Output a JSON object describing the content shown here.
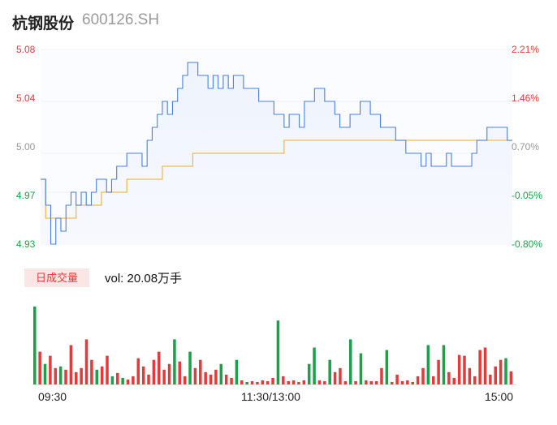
{
  "header": {
    "name": "杭钢股份",
    "code": "600126.SH"
  },
  "chart_data": {
    "type": "line",
    "title": "",
    "price_axis": [
      "5.08",
      "5.04",
      "5.00",
      "4.97",
      "4.93"
    ],
    "pct_axis": [
      "2.21%",
      "1.46%",
      "0.70%",
      "-0.05%",
      "-0.80%"
    ],
    "ylim": [
      4.93,
      5.08
    ],
    "prev_close": 4.97,
    "x_ticks": [
      "09:30",
      "11:30/13:00",
      "15:00"
    ],
    "colors": {
      "up": "#e23b3b",
      "down": "#1aa14a",
      "neutral": "#999999",
      "price": "#4a7fe0",
      "avg": "#f2bc4b"
    },
    "series": [
      {
        "name": "price",
        "values": [
          4.98,
          4.96,
          4.93,
          4.95,
          4.94,
          4.96,
          4.97,
          4.96,
          4.97,
          4.96,
          4.97,
          4.98,
          4.98,
          4.97,
          4.98,
          4.99,
          4.99,
          5.0,
          5.0,
          5.0,
          4.99,
          5.01,
          5.02,
          5.03,
          5.04,
          5.03,
          5.04,
          5.05,
          5.06,
          5.07,
          5.07,
          5.06,
          5.06,
          5.05,
          5.06,
          5.05,
          5.06,
          5.05,
          5.06,
          5.06,
          5.05,
          5.05,
          5.05,
          5.04,
          5.04,
          5.04,
          5.03,
          5.03,
          5.02,
          5.03,
          5.03,
          5.02,
          5.04,
          5.04,
          5.05,
          5.05,
          5.04,
          5.04,
          5.03,
          5.02,
          5.02,
          5.03,
          5.03,
          5.04,
          5.04,
          5.03,
          5.03,
          5.02,
          5.02,
          5.02,
          5.01,
          5.01,
          5.0,
          5.0,
          5.0,
          4.99,
          5.0,
          4.99,
          4.99,
          4.99,
          5.0,
          4.99,
          4.99,
          4.99,
          4.99,
          5.0,
          5.01,
          5.01,
          5.02,
          5.02,
          5.02,
          5.02,
          5.01
        ]
      },
      {
        "name": "avg",
        "values": [
          4.98,
          4.95,
          4.95,
          4.95,
          4.95,
          4.95,
          4.95,
          4.96,
          4.96,
          4.96,
          4.96,
          4.96,
          4.97,
          4.97,
          4.97,
          4.97,
          4.97,
          4.98,
          4.98,
          4.98,
          4.98,
          4.98,
          4.98,
          4.98,
          4.99,
          4.99,
          4.99,
          4.99,
          4.99,
          4.99,
          5.0,
          5.0,
          5.0,
          5.0,
          5.0,
          5.0,
          5.0,
          5.0,
          5.0,
          5.0,
          5.0,
          5.0,
          5.0,
          5.0,
          5.0,
          5.0,
          5.0,
          5.0,
          5.01,
          5.01,
          5.01,
          5.01,
          5.01,
          5.01,
          5.01,
          5.01,
          5.01,
          5.01,
          5.01,
          5.01,
          5.01,
          5.01,
          5.01,
          5.01,
          5.01,
          5.01,
          5.01,
          5.01,
          5.01,
          5.01,
          5.01,
          5.01,
          5.01,
          5.01,
          5.01,
          5.01,
          5.01,
          5.01,
          5.01,
          5.01,
          5.01,
          5.01,
          5.01,
          5.01,
          5.01,
          5.01,
          5.01,
          5.01,
          5.01,
          5.01,
          5.01,
          5.01,
          5.01
        ]
      }
    ],
    "volume": {
      "tab_label": "日成交量",
      "summary": "vol: 20.08万手",
      "bars": [
        {
          "v": 95,
          "c": "down"
        },
        {
          "v": 40,
          "c": "up"
        },
        {
          "v": 25,
          "c": "down"
        },
        {
          "v": 35,
          "c": "up"
        },
        {
          "v": 20,
          "c": "up"
        },
        {
          "v": 22,
          "c": "down"
        },
        {
          "v": 18,
          "c": "up"
        },
        {
          "v": 48,
          "c": "up"
        },
        {
          "v": 15,
          "c": "up"
        },
        {
          "v": 20,
          "c": "up"
        },
        {
          "v": 55,
          "c": "up"
        },
        {
          "v": 30,
          "c": "up"
        },
        {
          "v": 18,
          "c": "down"
        },
        {
          "v": 22,
          "c": "up"
        },
        {
          "v": 35,
          "c": "up"
        },
        {
          "v": 10,
          "c": "down"
        },
        {
          "v": 14,
          "c": "up"
        },
        {
          "v": 8,
          "c": "down"
        },
        {
          "v": 6,
          "c": "up"
        },
        {
          "v": 10,
          "c": "up"
        },
        {
          "v": 32,
          "c": "up"
        },
        {
          "v": 22,
          "c": "up"
        },
        {
          "v": 12,
          "c": "up"
        },
        {
          "v": 30,
          "c": "up"
        },
        {
          "v": 40,
          "c": "up"
        },
        {
          "v": 18,
          "c": "up"
        },
        {
          "v": 25,
          "c": "up"
        },
        {
          "v": 55,
          "c": "down"
        },
        {
          "v": 28,
          "c": "up"
        },
        {
          "v": 10,
          "c": "up"
        },
        {
          "v": 40,
          "c": "down"
        },
        {
          "v": 20,
          "c": "up"
        },
        {
          "v": 30,
          "c": "up"
        },
        {
          "v": 15,
          "c": "up"
        },
        {
          "v": 12,
          "c": "up"
        },
        {
          "v": 18,
          "c": "up"
        },
        {
          "v": 25,
          "c": "down"
        },
        {
          "v": 12,
          "c": "up"
        },
        {
          "v": 8,
          "c": "up"
        },
        {
          "v": 30,
          "c": "down"
        },
        {
          "v": 5,
          "c": "up"
        },
        {
          "v": 3,
          "c": "down"
        },
        {
          "v": 4,
          "c": "up"
        },
        {
          "v": 3,
          "c": "up"
        },
        {
          "v": 5,
          "c": "up"
        },
        {
          "v": 4,
          "c": "up"
        },
        {
          "v": 8,
          "c": "up"
        },
        {
          "v": 78,
          "c": "down"
        },
        {
          "v": 10,
          "c": "up"
        },
        {
          "v": 4,
          "c": "up"
        },
        {
          "v": 5,
          "c": "up"
        },
        {
          "v": 3,
          "c": "up"
        },
        {
          "v": 5,
          "c": "up"
        },
        {
          "v": 25,
          "c": "down"
        },
        {
          "v": 45,
          "c": "down"
        },
        {
          "v": 5,
          "c": "up"
        },
        {
          "v": 4,
          "c": "up"
        },
        {
          "v": 30,
          "c": "down"
        },
        {
          "v": 15,
          "c": "up"
        },
        {
          "v": 20,
          "c": "up"
        },
        {
          "v": 4,
          "c": "up"
        },
        {
          "v": 55,
          "c": "down"
        },
        {
          "v": 4,
          "c": "up"
        },
        {
          "v": 38,
          "c": "down"
        },
        {
          "v": 5,
          "c": "up"
        },
        {
          "v": 4,
          "c": "up"
        },
        {
          "v": 4,
          "c": "up"
        },
        {
          "v": 20,
          "c": "up"
        },
        {
          "v": 42,
          "c": "down"
        },
        {
          "v": 3,
          "c": "up"
        },
        {
          "v": 12,
          "c": "up"
        },
        {
          "v": 4,
          "c": "up"
        },
        {
          "v": 5,
          "c": "up"
        },
        {
          "v": 3,
          "c": "up"
        },
        {
          "v": 10,
          "c": "up"
        },
        {
          "v": 20,
          "c": "up"
        },
        {
          "v": 48,
          "c": "down"
        },
        {
          "v": 10,
          "c": "up"
        },
        {
          "v": 30,
          "c": "up"
        },
        {
          "v": 48,
          "c": "down"
        },
        {
          "v": 15,
          "c": "up"
        },
        {
          "v": 8,
          "c": "up"
        },
        {
          "v": 36,
          "c": "up"
        },
        {
          "v": 35,
          "c": "up"
        },
        {
          "v": 20,
          "c": "up"
        },
        {
          "v": 10,
          "c": "up"
        },
        {
          "v": 42,
          "c": "up"
        },
        {
          "v": 45,
          "c": "up"
        },
        {
          "v": 12,
          "c": "up"
        },
        {
          "v": 22,
          "c": "up"
        },
        {
          "v": 30,
          "c": "up"
        },
        {
          "v": 32,
          "c": "down"
        },
        {
          "v": 16,
          "c": "up"
        }
      ]
    }
  }
}
